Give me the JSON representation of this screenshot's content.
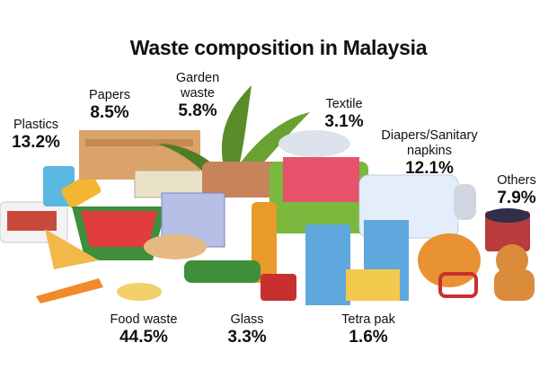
{
  "title": "Waste composition in Malaysia",
  "items": [
    {
      "name": "Plastics",
      "value": "13.2%"
    },
    {
      "name": "Papers",
      "value": "8.5%"
    },
    {
      "name": "Garden waste",
      "value": "5.8%"
    },
    {
      "name": "Textile",
      "value": "3.1%"
    },
    {
      "name": "Diapers/Sanitary napkins",
      "value": "12.1%"
    },
    {
      "name": "Others",
      "value": "7.9%"
    },
    {
      "name": "Food waste",
      "value": "44.5%"
    },
    {
      "name": "Glass",
      "value": "3.3%"
    },
    {
      "name": "Tetra pak",
      "value": "1.6%"
    }
  ]
}
